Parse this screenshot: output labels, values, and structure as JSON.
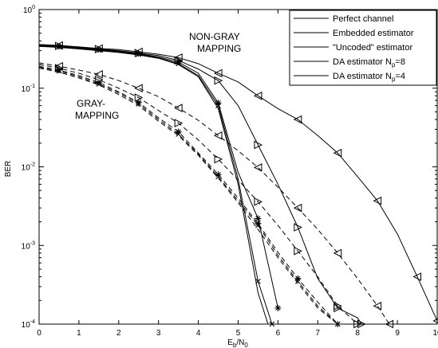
{
  "chart_data": {
    "type": "line",
    "xlabel_main": "E",
    "xlabel_sub1": "b",
    "xlabel_mid": "/N",
    "xlabel_sub2": "0",
    "ylabel": "BER",
    "xlim": [
      0,
      10
    ],
    "ylim": [
      0.0001,
      1
    ],
    "y_scale": "log",
    "grid": false,
    "legend_position": "top-right",
    "x_ticks": [
      "0",
      "1",
      "2",
      "3",
      "4",
      "5",
      "6",
      "7",
      "8",
      "9",
      "10"
    ],
    "y_ticks": [
      {
        "base": "10",
        "exp": "0",
        "value": 1
      },
      {
        "base": "10",
        "exp": "-1",
        "value": 0.1
      },
      {
        "base": "10",
        "exp": "-2",
        "value": 0.01
      },
      {
        "base": "10",
        "exp": "-3",
        "value": 0.001
      },
      {
        "base": "10",
        "exp": "-4",
        "value": 0.0001
      }
    ],
    "annotations": [
      {
        "id": "nongray",
        "lines": [
          "NON-GRAY",
          "MAPPING"
        ]
      },
      {
        "id": "gray",
        "lines": [
          "GRAY-",
          "MAPPING"
        ]
      }
    ],
    "legend": [
      {
        "label": "Perfect channel",
        "marker": "none"
      },
      {
        "label": "Embedded estimator",
        "marker": "x"
      },
      {
        "label": "\"Uncoded\" estimator",
        "marker": "star"
      },
      {
        "label_main": "DA estimator N",
        "label_sub": "p",
        "label_tail": "=8",
        "marker": "tri-right"
      },
      {
        "label_main": "DA estimator N",
        "label_sub": "p",
        "label_tail": "=4",
        "marker": "tri-left"
      }
    ],
    "series": [
      {
        "group": "non-gray",
        "estimator": "Perfect channel",
        "marker": "none",
        "dash": "solid",
        "x": [
          0,
          0.5,
          1,
          1.5,
          2,
          2.5,
          3,
          3.5,
          4,
          4.5,
          5,
          5.5,
          5.75
        ],
        "y": [
          0.34,
          0.33,
          0.315,
          0.3,
          0.285,
          0.265,
          0.24,
          0.2,
          0.14,
          0.055,
          0.006,
          0.00025,
          0.0001
        ]
      },
      {
        "group": "non-gray",
        "estimator": "Embedded estimator",
        "marker": "x",
        "dash": "solid",
        "x": [
          0,
          0.5,
          1,
          1.5,
          2,
          2.5,
          3,
          3.5,
          4,
          4.5,
          5,
          5.5,
          5.85
        ],
        "y": [
          0.345,
          0.335,
          0.32,
          0.305,
          0.29,
          0.27,
          0.245,
          0.205,
          0.145,
          0.06,
          0.007,
          0.00035,
          0.0001
        ]
      },
      {
        "group": "non-gray",
        "estimator": "\"Uncoded\" estimator",
        "marker": "star",
        "dash": "solid",
        "x": [
          0,
          0.5,
          1,
          1.5,
          2,
          2.5,
          3,
          3.5,
          4,
          4.5,
          5,
          5.5,
          6
        ],
        "y": [
          0.35,
          0.34,
          0.325,
          0.31,
          0.295,
          0.275,
          0.25,
          0.215,
          0.155,
          0.065,
          0.0085,
          0.0022,
          0.00016
        ]
      },
      {
        "group": "non-gray",
        "estimator": "DA estimator Np=8",
        "marker": "tri-right",
        "dash": "solid",
        "x": [
          0,
          0.5,
          1,
          1.5,
          2,
          2.5,
          3,
          3.5,
          4,
          4.5,
          5,
          5.5,
          6,
          6.5,
          7,
          7.5,
          8,
          8.1
        ],
        "y": [
          0.355,
          0.345,
          0.33,
          0.315,
          0.3,
          0.28,
          0.26,
          0.225,
          0.175,
          0.125,
          0.06,
          0.019,
          0.006,
          0.0017,
          0.00038,
          0.00016,
          0.00012,
          0.0001
        ]
      },
      {
        "group": "non-gray",
        "estimator": "DA estimator Np=4",
        "marker": "tri-left",
        "dash": "solid",
        "x": [
          0,
          0.5,
          1,
          1.5,
          2,
          2.5,
          3,
          3.5,
          4,
          4.5,
          5,
          5.5,
          6,
          6.5,
          7,
          7.5,
          8,
          8.5,
          9,
          9.5,
          10
        ],
        "y": [
          0.36,
          0.35,
          0.335,
          0.32,
          0.31,
          0.29,
          0.27,
          0.245,
          0.205,
          0.155,
          0.12,
          0.08,
          0.055,
          0.04,
          0.025,
          0.015,
          0.0075,
          0.0037,
          0.0014,
          0.0004,
          0.00011
        ]
      },
      {
        "group": "gray",
        "estimator": "Perfect channel",
        "marker": "none",
        "dash": "dashed",
        "x": [
          0,
          0.5,
          1,
          1.5,
          2,
          2.5,
          3,
          3.5,
          4,
          4.5,
          5,
          5.5,
          6,
          6.5,
          7,
          7.5
        ],
        "y": [
          0.18,
          0.16,
          0.135,
          0.11,
          0.083,
          0.06,
          0.038,
          0.025,
          0.014,
          0.0072,
          0.0035,
          0.0016,
          0.0007,
          0.00033,
          0.00016,
          0.0001
        ]
      },
      {
        "group": "gray",
        "estimator": "Embedded estimator",
        "marker": "x",
        "dash": "dashed",
        "x": [
          0,
          0.5,
          1,
          1.5,
          2,
          2.5,
          3,
          3.5,
          4,
          4.5,
          5,
          5.5,
          6,
          6.5,
          7,
          7.5
        ],
        "y": [
          0.185,
          0.165,
          0.14,
          0.113,
          0.087,
          0.063,
          0.04,
          0.026,
          0.0145,
          0.0075,
          0.0037,
          0.0018,
          0.00075,
          0.00035,
          0.00017,
          0.0001
        ]
      },
      {
        "group": "gray",
        "estimator": "\"Uncoded\" estimator",
        "marker": "star",
        "dash": "dashed",
        "x": [
          0,
          0.5,
          1,
          1.5,
          2,
          2.5,
          3,
          3.5,
          4,
          4.5,
          5,
          5.5,
          6,
          6.5,
          7,
          7.5
        ],
        "y": [
          0.19,
          0.17,
          0.145,
          0.118,
          0.09,
          0.066,
          0.042,
          0.028,
          0.015,
          0.008,
          0.004,
          0.0019,
          0.00082,
          0.00038,
          0.00019,
          0.0001
        ]
      },
      {
        "group": "gray",
        "estimator": "DA estimator Np=8",
        "marker": "tri-right",
        "dash": "dashed",
        "x": [
          0,
          0.5,
          1,
          1.5,
          2,
          2.5,
          3,
          3.5,
          4,
          4.5,
          5,
          5.5,
          6,
          6.5,
          7,
          7.5,
          8
        ],
        "y": [
          0.2,
          0.18,
          0.155,
          0.128,
          0.1,
          0.076,
          0.052,
          0.036,
          0.022,
          0.0125,
          0.0068,
          0.0036,
          0.0018,
          0.00085,
          0.0004,
          0.00017,
          0.0001
        ]
      },
      {
        "group": "gray",
        "estimator": "DA estimator Np=4",
        "marker": "tri-left",
        "dash": "dashed",
        "x": [
          0,
          0.5,
          1,
          1.5,
          2,
          2.5,
          3,
          3.5,
          4,
          4.5,
          5,
          5.5,
          6,
          6.5,
          7,
          7.5,
          8,
          8.5,
          8.8
        ],
        "y": [
          0.21,
          0.19,
          0.17,
          0.15,
          0.125,
          0.1,
          0.078,
          0.056,
          0.039,
          0.025,
          0.016,
          0.0098,
          0.0055,
          0.003,
          0.0016,
          0.0008,
          0.00038,
          0.00017,
          0.0001
        ]
      }
    ]
  }
}
